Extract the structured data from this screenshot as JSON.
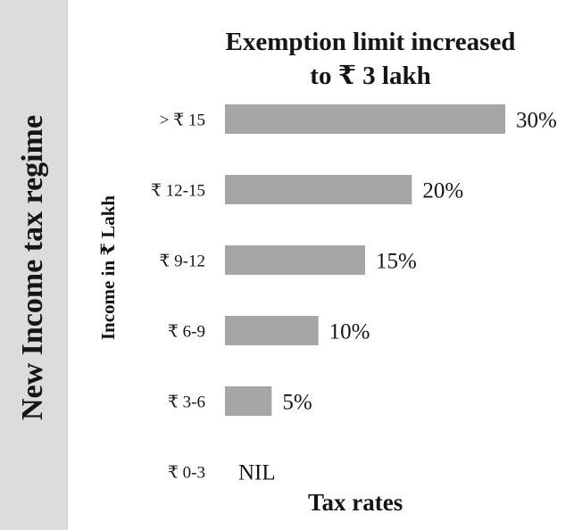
{
  "sidebar": {
    "title": "New Income tax regime"
  },
  "chart_data": {
    "type": "bar",
    "orientation": "horizontal",
    "title_lines": [
      "Exemption limit  increased",
      "to ₹ 3 lakh"
    ],
    "xlabel": "Tax rates",
    "ylabel": "Income in ₹ Lakh",
    "categories": [
      "> ₹ 15",
      "₹ 12-15",
      "₹ 9-12",
      "₹ 6-9",
      "₹ 3-6",
      "₹ 0-3"
    ],
    "values": [
      30,
      20,
      15,
      10,
      5,
      0
    ],
    "value_labels": [
      "30%",
      "20%",
      "15%",
      "10%",
      "5%",
      "NIL"
    ],
    "xlim": [
      0,
      30
    ],
    "bar_color": "#a6a6a6",
    "grid": false,
    "legend": "none"
  }
}
